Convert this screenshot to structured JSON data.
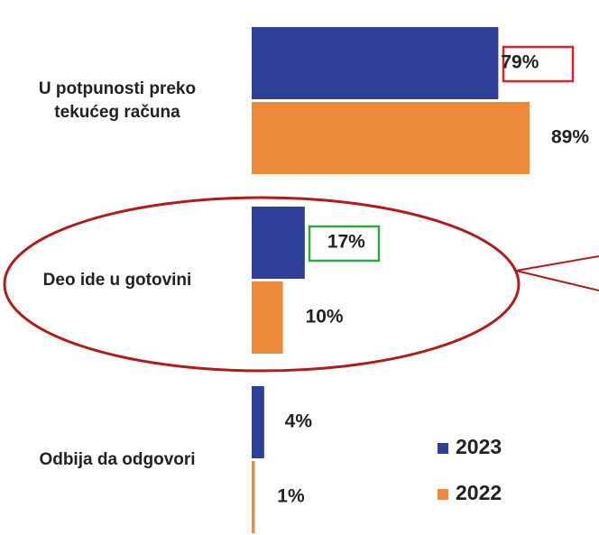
{
  "chart_data": {
    "type": "hbar",
    "categories": [
      "U potpunosti preko tekućeg računa",
      "Deo ide u gotovini",
      "Odbija da odgovori"
    ],
    "series": [
      {
        "name": "2023",
        "color": "#2e3f98",
        "values": [
          79,
          17,
          4
        ],
        "value_labels": [
          "79%",
          "17%",
          "4%"
        ]
      },
      {
        "name": "2022",
        "color": "#ed8a3a",
        "values": [
          89,
          10,
          1
        ],
        "value_labels": [
          "89%",
          "10%",
          "1%"
        ]
      }
    ],
    "xlim": [
      0,
      89
    ]
  }
}
